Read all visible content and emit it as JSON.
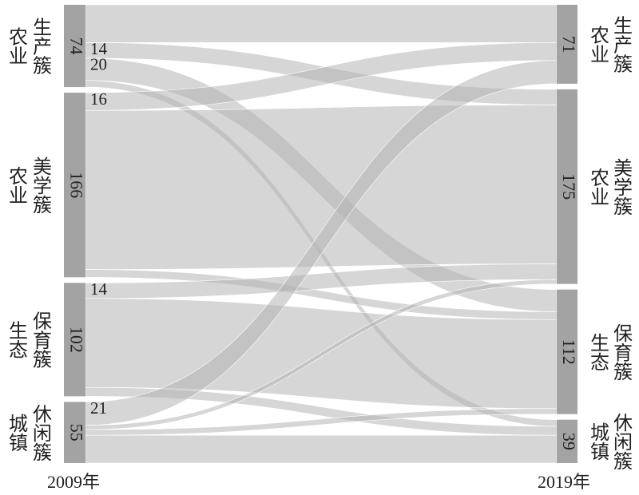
{
  "chart_data": {
    "type": "sankey",
    "left_label": "2009年",
    "right_label": "2019年",
    "node_color": "#a3a3a3",
    "flow_color": "#b4b4b4",
    "left_nodes": [
      {
        "label_lines": [
          "农业",
          "生产簇"
        ],
        "value": 74
      },
      {
        "label_lines": [
          "农业",
          "美学簇"
        ],
        "value": 166
      },
      {
        "label_lines": [
          "生态",
          "保育簇"
        ],
        "value": 102
      },
      {
        "label_lines": [
          "城镇",
          "休闲簇"
        ],
        "value": 55
      }
    ],
    "right_nodes": [
      {
        "label_lines": [
          "农业",
          "生产簇"
        ],
        "value": 71
      },
      {
        "label_lines": [
          "农业",
          "美学簇"
        ],
        "value": 175
      },
      {
        "label_lines": [
          "生态",
          "保育簇"
        ],
        "value": 112
      },
      {
        "label_lines": [
          "城镇",
          "休闲簇"
        ],
        "value": 39
      }
    ],
    "flows": [
      {
        "source": 0,
        "target": 0,
        "value": 34
      },
      {
        "source": 0,
        "target": 1,
        "value": 14,
        "show_label": true
      },
      {
        "source": 0,
        "target": 2,
        "value": 20,
        "show_label": true
      },
      {
        "source": 0,
        "target": 3,
        "value": 6
      },
      {
        "source": 1,
        "target": 0,
        "value": 16,
        "show_label": true
      },
      {
        "source": 1,
        "target": 1,
        "value": 143
      },
      {
        "source": 1,
        "target": 2,
        "value": 7
      },
      {
        "source": 2,
        "target": 1,
        "value": 14,
        "show_label": true
      },
      {
        "source": 2,
        "target": 2,
        "value": 80
      },
      {
        "source": 2,
        "target": 3,
        "value": 8
      },
      {
        "source": 3,
        "target": 0,
        "value": 21,
        "show_label": true
      },
      {
        "source": 3,
        "target": 1,
        "value": 4
      },
      {
        "source": 3,
        "target": 2,
        "value": 5
      },
      {
        "source": 3,
        "target": 3,
        "value": 25
      }
    ]
  }
}
